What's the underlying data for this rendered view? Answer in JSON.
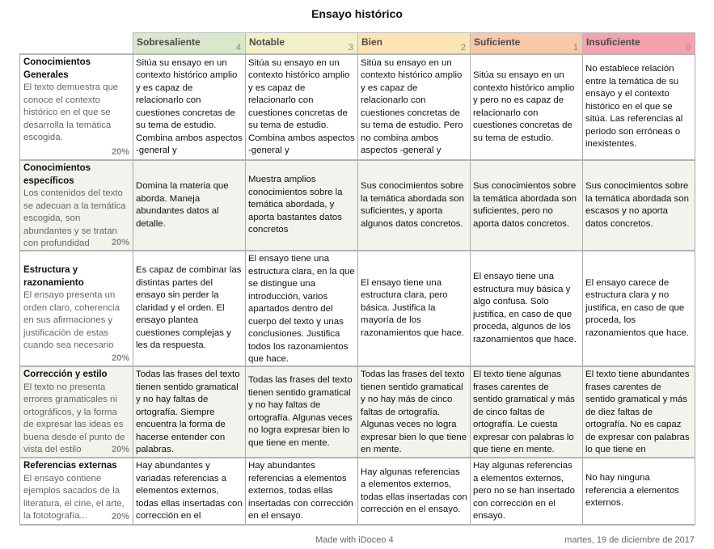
{
  "title": "Ensayo histórico",
  "levels": [
    {
      "label": "Sobresaliente",
      "points": "4",
      "color": "#d9e8cc"
    },
    {
      "label": "Notable",
      "points": "3",
      "color": "#f1f0c8"
    },
    {
      "label": "Bien",
      "points": "2",
      "color": "#fce4b4"
    },
    {
      "label": "Suficiente",
      "points": "1",
      "color": "#f8c8a8"
    },
    {
      "label": "Insuficiente",
      "points": "0",
      "color": "#f6a2ae"
    }
  ],
  "criteria": [
    {
      "name": "Conocimientos Generales",
      "description": "El texto demuestra que conoce el contexto histórico en el que se desarrolla la temática escogida.",
      "weight": "20%",
      "cells": [
        "Sitúa su ensayo en un contexto histórico amplio y es capaz de relacionarlo con cuestiones concretas de su tema de estudio. Combina ambos aspectos -general y",
        "Sitúa su ensayo en un contexto histórico amplio y es capaz de relacionarlo con cuestiones concretas de su tema de estudio. Combina ambos aspectos -general y",
        "Sitúa su ensayo en un contexto histórico amplio y es capaz de relacionarlo con cuestiones concretas de su tema de estudio. Pero no combina ambos aspectos -general y",
        "Sitúa su ensayo en un contexto histórico amplio y pero no es capaz de relacionarlo con cuestiones concretas de su tema de estudio.",
        "No establece relación entre la temática de su ensayo y el contexto histórico en el que se sitúa. Las referencias al periodo son erróneas o inexistentes."
      ]
    },
    {
      "name": "Conocimientos específicos",
      "description": "Los contenidos del texto se adecuan a la temática escogida, son abundantes y se tratan con profundidad",
      "weight": "20%",
      "cells": [
        "Domina la materia que aborda. Maneja abundantes datos al detalle.",
        "Muestra amplios conocimientos sobre la temática abordada, y aporta bastantes datos concretos",
        "Sus conocimientos sobre la temática abordada son suficientes, y aporta algunos datos concretos.",
        "Sus conocimientos sobre la temática abordada son suficientes, pero no aporta datos concretos.",
        "Sus conocimientos sobre la temática abordada son escasos y no aporta datos concretos."
      ]
    },
    {
      "name": "Estructura y razonamiento",
      "description": "El ensayo presenta un orden claro, coherencia en sus afirmaciones y justificación de estas cuando sea necesario",
      "weight": "20%",
      "cells": [
        "Es capaz de combinar las distintas partes del ensayo sin perder la claridad y el orden. El ensayo plantea cuestiones complejas y les da respuesta.",
        "El ensayo tiene una estructura clara, en la que se distingue una introducción, varios apartados dentro del cuerpo del texto y unas conclusiones. Justifica todos los razonamientos que hace.",
        "El ensayo tiene una estructura clara, pero básica. Justifica la mayoría de los razonamientos que hace.",
        "El ensayo tiene una estructura muy básica y algo confusa. Solo justifica, en caso de que proceda, algunos de los razonamientos que hace.",
        "El ensayo carece de estructura clara y no justifica, en caso de que proceda, los razonamientos que hace."
      ]
    },
    {
      "name": "Corrección y estilo",
      "description": "El texto no presenta errores gramaticales ni ortográficos, y la forma de expresar las ideas es buena desde el punto de vista del estilo",
      "weight": "20%",
      "cells": [
        "Todas las frases del texto tienen sentido gramatical y no hay faltas de ortografía. Siempre encuentra la forma de hacerse entender con palabras.",
        "Todas las frases del texto tienen sentido gramatical y no hay faltas de ortografía. Algunas veces no logra expresar bien lo que tiene en mente.",
        "Todas las frases del texto tienen sentido gramatical y no hay más de cinco faltas de ortografía. Algunas veces no logra expresar bien lo que tiene en mente.",
        "El texto tiene algunas frases carentes de sentido gramatical y más de cinco faltas de ortografía. Le cuesta expresar con palabras lo que tiene en mente.",
        "El texto tiene abundantes frases carentes de sentido gramatical y más de diez faltas de ortografía. No es capaz de expresar con palabras lo que tiene en"
      ]
    },
    {
      "name": "Referencias externas",
      "description": "El ensayo contiene ejemplos sacados de la literatura, el cine, el arte, la fototografía...",
      "weight": "20%",
      "cells": [
        "Hay abundantes y variadas referencias a elementos externos, todas ellas insertadas con corrección en el",
        "Hay abundantes referencias a elementos externos, todas ellas insertadas con corrección en el ensayo.",
        "Hay algunas referencias a elementos externos, todas ellas insertadas con corrección en el ensayo.",
        "Hay algunas referencias a elementos externos, pero no se han insertado con corrección en el ensayo.",
        "No hay ninguna referencia a elementos externos."
      ]
    }
  ],
  "footer": {
    "made_with": "Made with iDoceo 4",
    "date": "martes, 19 de diciembre de 2017"
  }
}
